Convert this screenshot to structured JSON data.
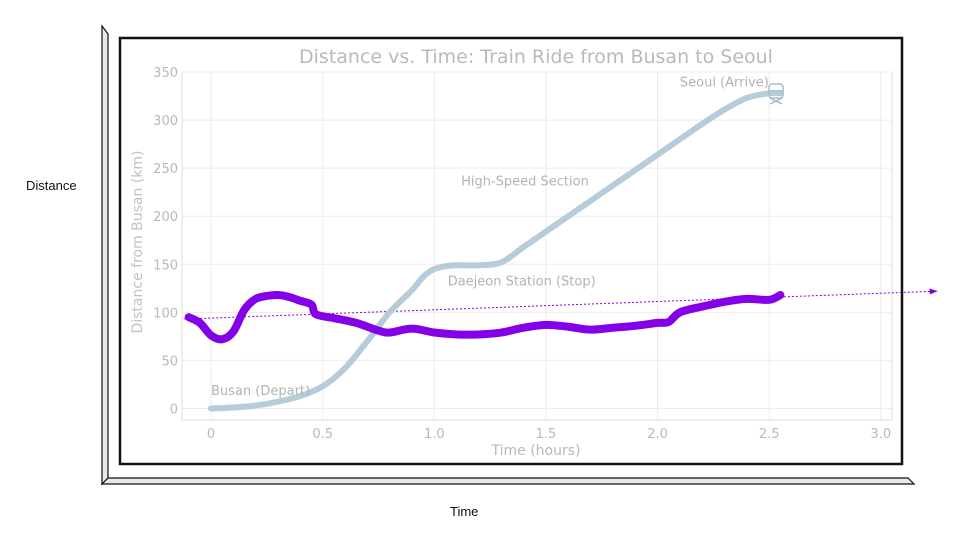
{
  "outer": {
    "ylabel": "Distance",
    "xlabel": "Time"
  },
  "chart_data": {
    "type": "line",
    "title": "Distance vs. Time: Train Ride from Busan to Seoul",
    "xlabel": "Time (hours)",
    "ylabel": "Distance from Busan (km)",
    "xlim": [
      -0.13,
      3.05
    ],
    "ylim": [
      -12,
      350
    ],
    "xticks": [
      0,
      0.5,
      1.0,
      1.5,
      2.0,
      2.5,
      3.0
    ],
    "xtick_labels": [
      "0",
      "0.5",
      "1.0",
      "1.5",
      "2.0",
      "2.5",
      "3.0"
    ],
    "yticks": [
      0,
      50,
      100,
      150,
      200,
      250,
      300,
      350
    ],
    "ytick_labels": [
      "0",
      "50",
      "100",
      "150",
      "200",
      "250",
      "300",
      "350"
    ],
    "grid": true,
    "series": [
      {
        "color": "#b7ccd9",
        "x": [
          0,
          0.1,
          0.2,
          0.3,
          0.4,
          0.5,
          0.6,
          0.7,
          0.8,
          0.9,
          0.95,
          1.0,
          1.05,
          1.1,
          1.2,
          1.3,
          1.4,
          1.5,
          1.6,
          1.7,
          1.8,
          1.9,
          2.0,
          2.1,
          2.2,
          2.3,
          2.4,
          2.5,
          2.55
        ],
        "y": [
          0,
          1,
          3,
          7,
          13,
          23,
          42,
          70,
          100,
          123,
          137,
          145,
          148,
          149,
          149,
          152,
          168,
          184,
          200,
          216,
          232,
          248,
          264,
          280,
          296,
          311,
          323,
          328,
          328
        ]
      },
      {
        "color": "#8400e6",
        "x": [
          -0.1,
          -0.05,
          0,
          0.05,
          0.1,
          0.15,
          0.2,
          0.25,
          0.3,
          0.35,
          0.4,
          0.45,
          0.47,
          0.55,
          0.65,
          0.75,
          0.8,
          0.9,
          1.0,
          1.1,
          1.2,
          1.3,
          1.4,
          1.5,
          1.6,
          1.7,
          1.8,
          1.9,
          2.0,
          2.05,
          2.1,
          2.2,
          2.3,
          2.4,
          2.5,
          2.55
        ],
        "y": [
          95,
          89,
          76,
          72,
          80,
          103,
          114,
          117,
          118,
          116,
          112,
          108,
          98,
          94,
          89,
          81,
          79,
          83,
          79,
          77,
          77,
          79,
          84,
          87,
          85,
          82,
          84,
          86,
          89,
          90,
          100,
          106,
          111,
          114,
          113,
          118
        ]
      }
    ],
    "annotations": [
      {
        "text": "Seoul (Arrive)",
        "x": 2.1,
        "y": 335
      },
      {
        "text": "High-Speed Section",
        "x": 1.12,
        "y": 232
      },
      {
        "text": "Daejeon Station (Stop)",
        "x": 1.06,
        "y": 128
      },
      {
        "text": "Busan (Depart)",
        "x": 0.0,
        "y": 14
      }
    ],
    "trend_arrow": {
      "color": "#8400e6",
      "x": [
        -0.12,
        3.25
      ],
      "y": [
        93,
        122
      ]
    }
  }
}
